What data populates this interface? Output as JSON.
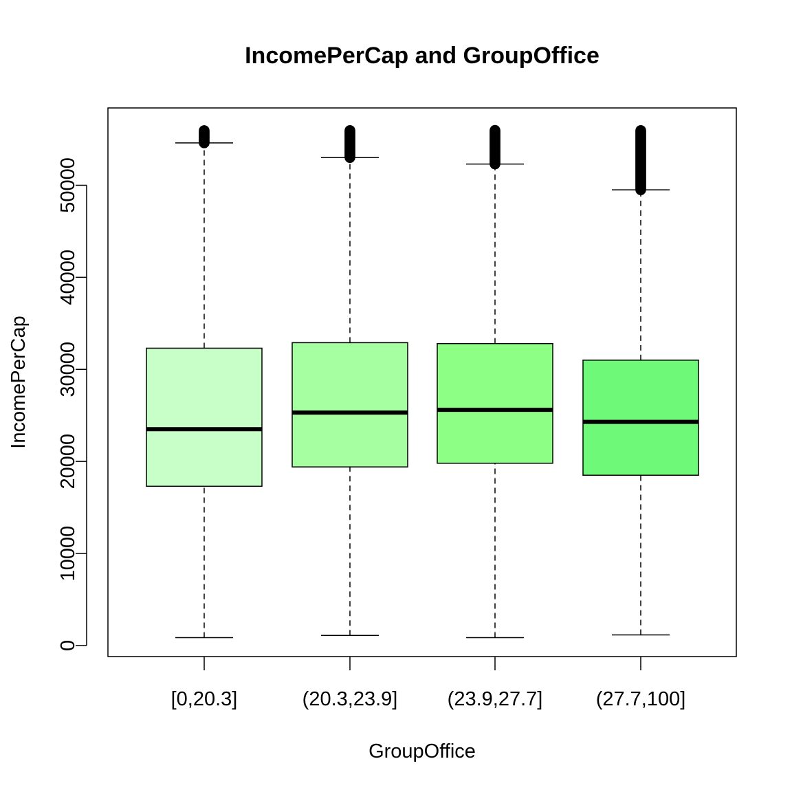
{
  "chart_data": {
    "type": "boxplot",
    "title": "IncomePerCap and GroupOffice",
    "xlabel": "GroupOffice",
    "ylabel": "IncomePerCap",
    "categories": [
      "[0,20.3]",
      "(20.3,23.9]",
      "(23.9,27.7]",
      "(27.7,100]"
    ],
    "y_ticks": [
      0,
      10000,
      20000,
      30000,
      40000,
      50000
    ],
    "ylim": [
      -1200,
      58400
    ],
    "grid": false,
    "legend": "none",
    "boxes": [
      {
        "category": "[0,20.3]",
        "whisker_low": 850,
        "q1": 17300,
        "median": 23500,
        "q3": 32300,
        "whisker_high": 54600,
        "outliers_min": 54600,
        "outliers_max": 56000,
        "fill": "#c8ffc8"
      },
      {
        "category": "(20.3,23.9]",
        "whisker_low": 1100,
        "q1": 19400,
        "median": 25300,
        "q3": 32900,
        "whisker_high": 53000,
        "outliers_min": 53000,
        "outliers_max": 56000,
        "fill": "#a6ffa0"
      },
      {
        "category": "(23.9,27.7]",
        "whisker_low": 850,
        "q1": 19800,
        "median": 25600,
        "q3": 32800,
        "whisker_high": 52300,
        "outliers_min": 52300,
        "outliers_max": 56000,
        "fill": "#8cff84"
      },
      {
        "category": "(27.7,100]",
        "whisker_low": 1150,
        "q1": 18500,
        "median": 24300,
        "q3": 31000,
        "whisker_high": 49500,
        "outliers_min": 49500,
        "outliers_max": 56000,
        "fill": "#6efa78"
      }
    ]
  }
}
